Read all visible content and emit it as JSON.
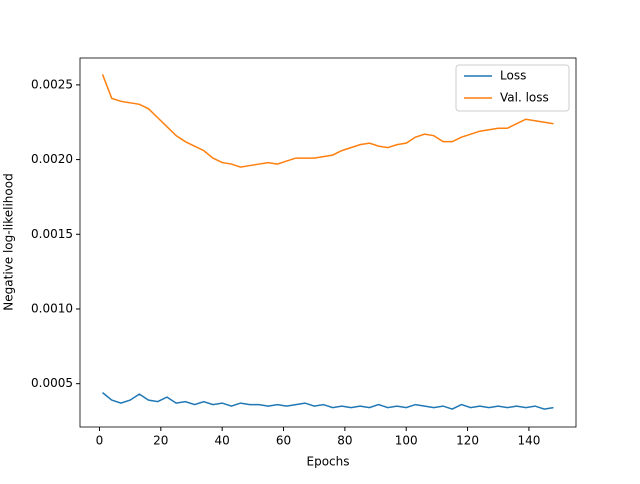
{
  "chart_data": {
    "type": "line",
    "xlabel": "Epochs",
    "ylabel": "Negative log-likelihood",
    "x": [
      1,
      4,
      7,
      10,
      13,
      16,
      19,
      22,
      25,
      28,
      31,
      34,
      37,
      40,
      43,
      46,
      49,
      52,
      55,
      58,
      61,
      64,
      67,
      70,
      73,
      76,
      79,
      82,
      85,
      88,
      91,
      94,
      97,
      100,
      103,
      106,
      109,
      112,
      115,
      118,
      121,
      124,
      127,
      130,
      133,
      136,
      139,
      142,
      145,
      148
    ],
    "series": [
      {
        "name": "Loss",
        "color": "#1f77b4",
        "values": [
          0.00044,
          0.00039,
          0.00037,
          0.00039,
          0.00043,
          0.00039,
          0.00038,
          0.00041,
          0.00037,
          0.00038,
          0.00036,
          0.00038,
          0.00036,
          0.00037,
          0.00035,
          0.00037,
          0.00036,
          0.00036,
          0.00035,
          0.00036,
          0.00035,
          0.00036,
          0.00037,
          0.00035,
          0.00036,
          0.00034,
          0.00035,
          0.00034,
          0.00035,
          0.00034,
          0.00036,
          0.00034,
          0.00035,
          0.00034,
          0.00036,
          0.00035,
          0.00034,
          0.00035,
          0.00033,
          0.00036,
          0.00034,
          0.00035,
          0.00034,
          0.00035,
          0.00034,
          0.00035,
          0.00034,
          0.00035,
          0.00033,
          0.00034
        ]
      },
      {
        "name": "Val. loss",
        "color": "#ff7f0e",
        "values": [
          0.00257,
          0.00241,
          0.00239,
          0.00238,
          0.00237,
          0.00234,
          0.00228,
          0.00222,
          0.00216,
          0.00212,
          0.00209,
          0.00206,
          0.00201,
          0.00198,
          0.00197,
          0.00195,
          0.00196,
          0.00197,
          0.00198,
          0.00197,
          0.00199,
          0.00201,
          0.00201,
          0.00201,
          0.00202,
          0.00203,
          0.00206,
          0.00208,
          0.0021,
          0.00211,
          0.00209,
          0.00208,
          0.0021,
          0.00211,
          0.00215,
          0.00217,
          0.00216,
          0.00212,
          0.00212,
          0.00215,
          0.00217,
          0.00219,
          0.0022,
          0.00221,
          0.00221,
          0.00224,
          0.00227,
          0.00226,
          0.00225,
          0.00224
        ]
      }
    ],
    "xlim": [
      -6.35,
      155.35
    ],
    "xticks": [
      0,
      20,
      40,
      60,
      80,
      100,
      120,
      140
    ],
    "ylim": [
      0.00021,
      0.00268
    ],
    "yticks": [
      0.0005,
      {
        "value": 0.001,
        "label": "0.0010"
      },
      0.0015,
      {
        "value": 0.002,
        "label": "0.0020"
      },
      0.0025
    ],
    "legend": "upper right"
  }
}
